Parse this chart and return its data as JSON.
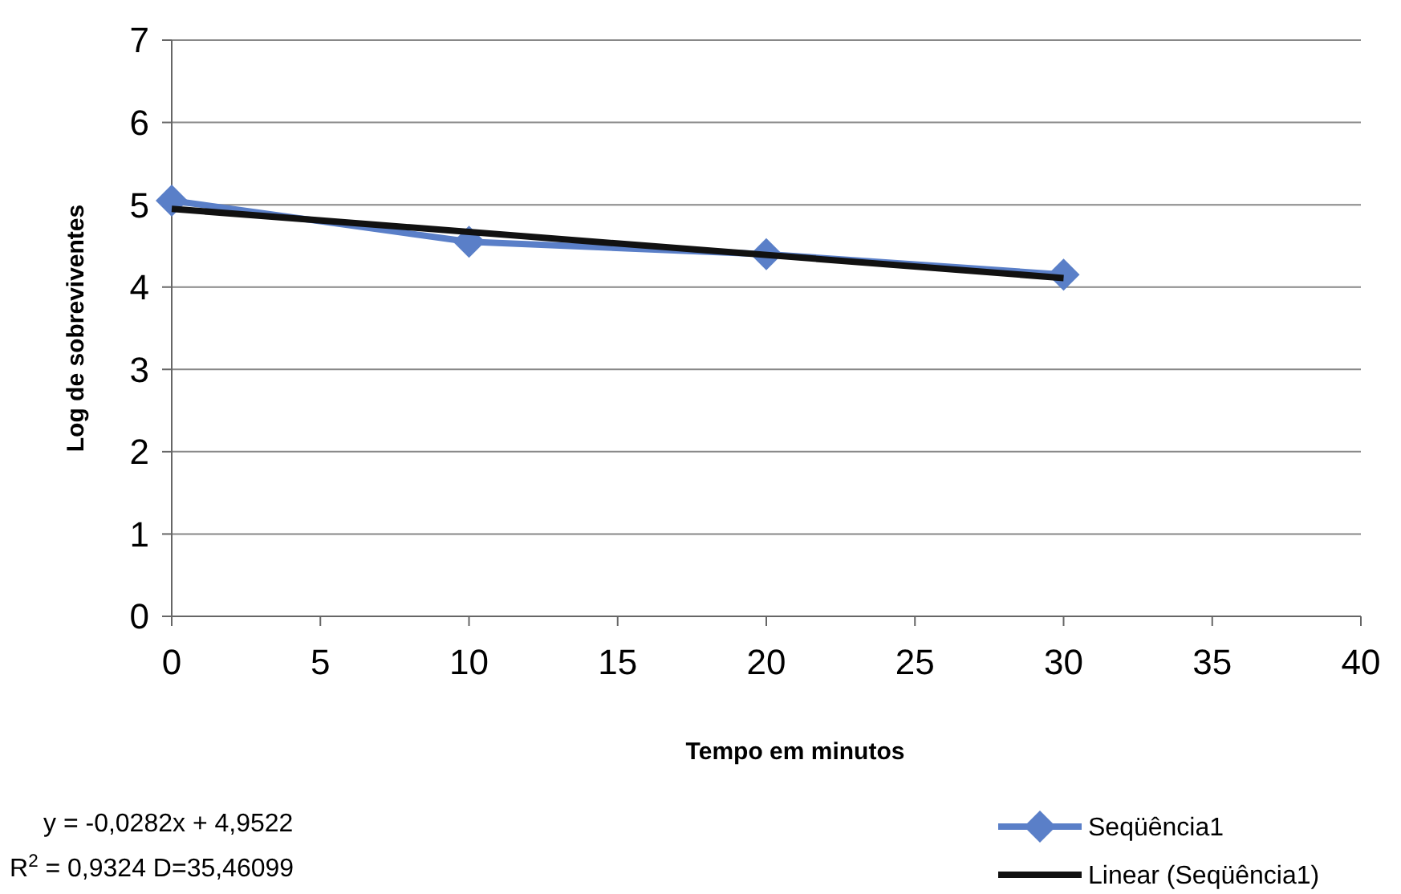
{
  "chart_data": {
    "type": "line",
    "xlabel": "Tempo em minutos",
    "ylabel": "Log de sobreviventes",
    "x": [
      0,
      10,
      20,
      30
    ],
    "series": [
      {
        "name": "Seqüência1",
        "color": "#5a7fc8",
        "values": [
          5.05,
          4.55,
          4.4,
          4.15
        ],
        "marker": "diamond"
      },
      {
        "name": "Linear (Seqüência1)",
        "color": "#111111",
        "type": "line",
        "x": [
          0,
          30
        ],
        "values": [
          4.95,
          4.11
        ],
        "marker": "none"
      }
    ],
    "xlim": [
      0,
      40
    ],
    "xticks": [
      0,
      5,
      10,
      15,
      20,
      25,
      30,
      35,
      40
    ],
    "ylim": [
      0,
      7
    ],
    "yticks": [
      0,
      1,
      2,
      3,
      4,
      5,
      6,
      7
    ],
    "grid": "y",
    "legend": "bottom right",
    "annotations": [
      "y = -0,0282x + 4,9522",
      "R$^{2}$ = 0,9324 D=35,46099"
    ]
  }
}
